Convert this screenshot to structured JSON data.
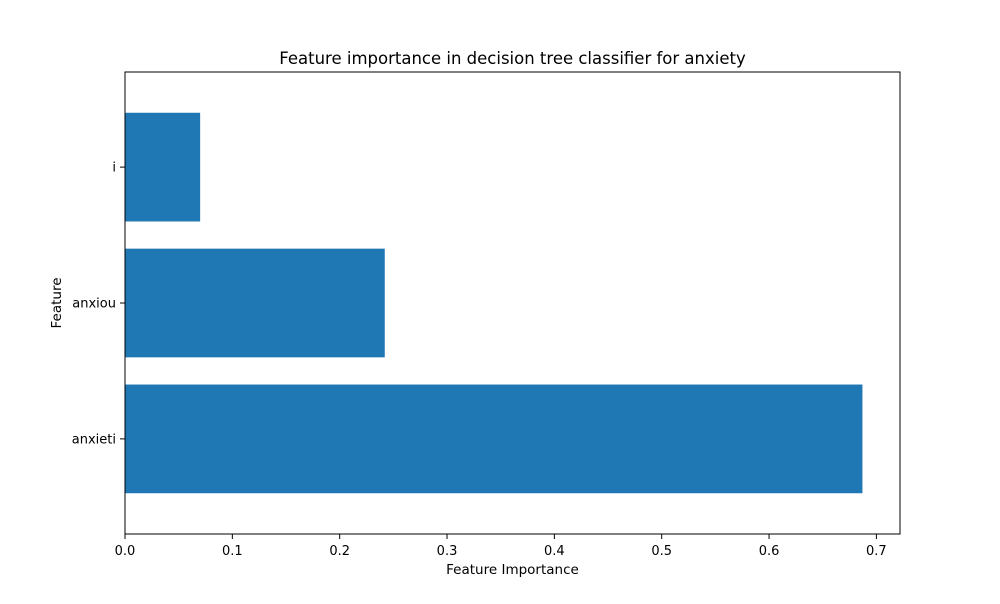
{
  "chart_data": {
    "type": "bar",
    "orientation": "horizontal",
    "title": "Feature importance in decision tree classifier for anxiety",
    "xlabel": "Feature Importance",
    "ylabel": "Feature",
    "categories": [
      "anxieti",
      "anxiou",
      "i"
    ],
    "values": [
      0.687,
      0.242,
      0.07
    ],
    "xlim": [
      0,
      0.722
    ],
    "xticks": [
      0.0,
      0.1,
      0.2,
      0.3,
      0.4,
      0.5,
      0.6,
      0.7
    ],
    "xtick_labels": [
      "0.0",
      "0.1",
      "0.2",
      "0.3",
      "0.4",
      "0.5",
      "0.6",
      "0.7"
    ],
    "bar_color": "#1f77b4",
    "grid": false,
    "legend": "none"
  }
}
